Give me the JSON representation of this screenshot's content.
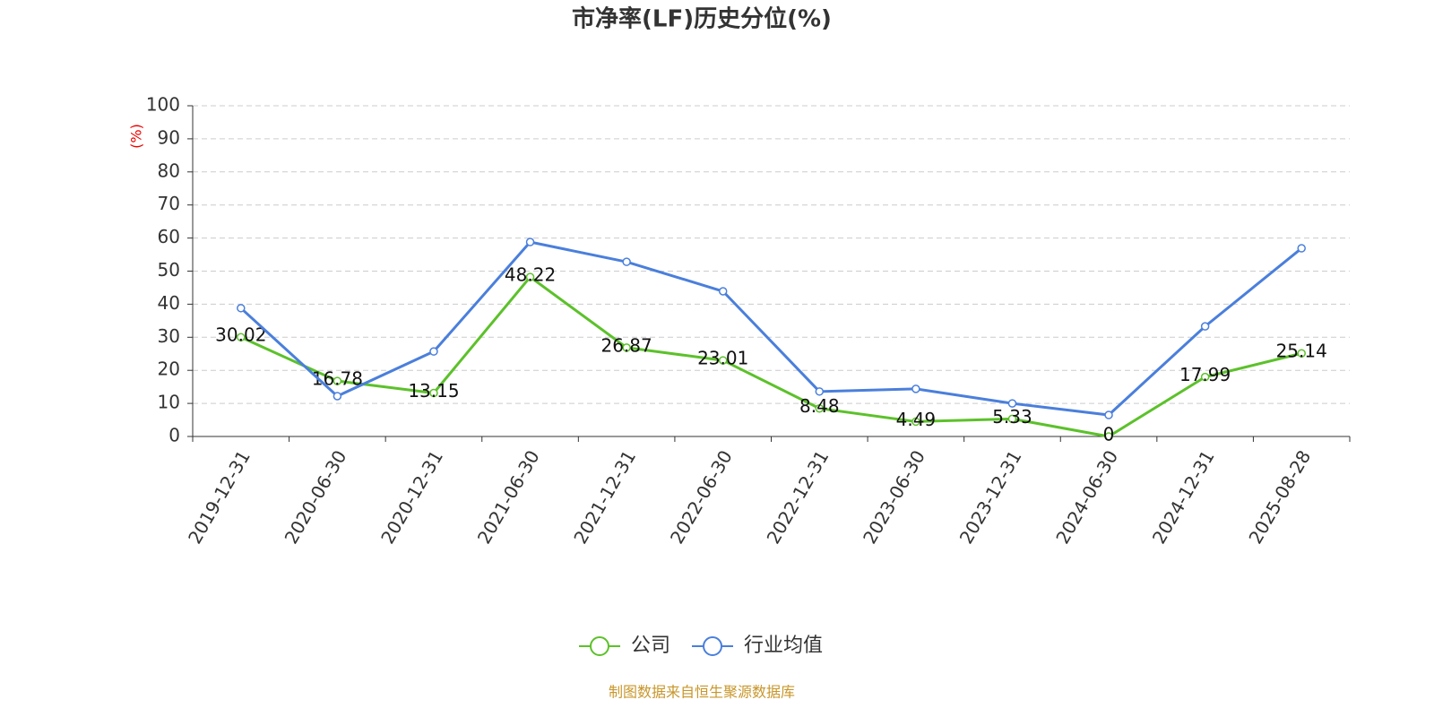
{
  "chart_data": {
    "type": "line",
    "title": "市净率(LF)历史分位(%)",
    "y_label": "(%)",
    "categories": [
      "2019-12-31",
      "2020-06-30",
      "2020-12-31",
      "2021-06-30",
      "2021-12-31",
      "2022-06-30",
      "2022-12-31",
      "2023-06-30",
      "2023-12-31",
      "2024-06-30",
      "2024-12-31",
      "2025-08-28"
    ],
    "series": [
      {
        "name": "公司",
        "color": "#5cc12a",
        "values": [
          30.02,
          16.78,
          13.15,
          48.22,
          26.87,
          23.01,
          8.48,
          4.49,
          5.33,
          0,
          17.99,
          25.14
        ],
        "labels": true
      },
      {
        "name": "行业均值",
        "color": "#4a7fdc",
        "values": [
          38.8,
          12.2,
          25.7,
          58.8,
          52.8,
          43.9,
          13.6,
          14.4,
          10.0,
          6.5,
          33.3,
          56.9
        ],
        "labels": false
      }
    ],
    "ylim": [
      0,
      100
    ],
    "yticks": [
      0,
      10,
      20,
      30,
      40,
      50,
      60,
      70,
      80,
      90,
      100
    ],
    "grid": true,
    "legend": "bottom",
    "source": "制图数据来自恒生聚源数据库"
  }
}
